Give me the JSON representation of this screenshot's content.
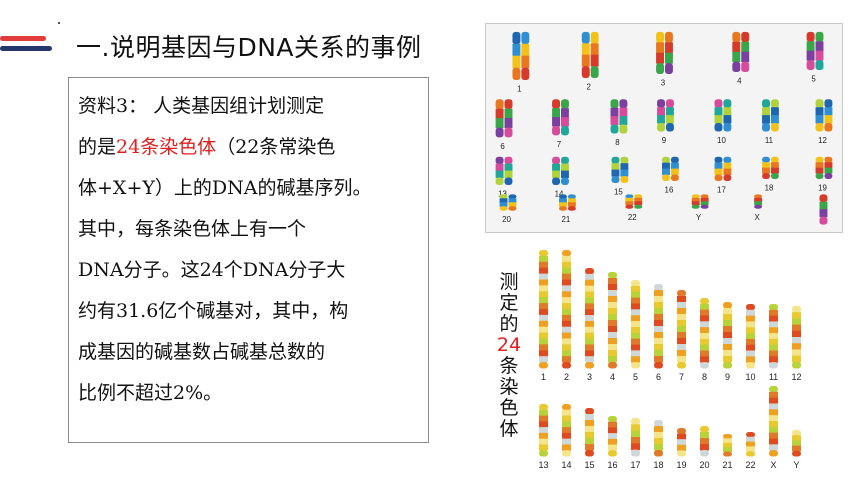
{
  "title": "一.说明基因与DNA关系的事例",
  "text_lines": [
    {
      "segments": [
        {
          "text": "资料3：  人类基因组计划测定",
          "red": false
        }
      ]
    },
    {
      "segments": [
        {
          "text": "的是",
          "red": false
        },
        {
          "text": "24条染色体",
          "red": true
        },
        {
          "text": "（22条常染色",
          "red": false
        }
      ]
    },
    {
      "segments": [
        {
          "text": "体+X+Y）上的DNA的碱基序列。",
          "red": false
        }
      ]
    },
    {
      "segments": [
        {
          "text": "其中，每条染色体上有一个",
          "red": false
        }
      ]
    },
    {
      "segments": [
        {
          "text": "DNA分子。这24个DNA分子大",
          "red": false
        }
      ]
    },
    {
      "segments": [
        {
          "text": "约有31.6亿个碱基对，其中，构",
          "red": false
        }
      ]
    },
    {
      "segments": [
        {
          "text": "成基因的碱基数占碱基总数的",
          "red": false
        }
      ]
    },
    {
      "segments": [
        {
          "text": "比例不超过2%。",
          "red": false
        }
      ]
    }
  ],
  "karyotype_labels": [
    "1",
    "2",
    "3",
    "4",
    "5",
    "6",
    "7",
    "8",
    "9",
    "10",
    "11",
    "12",
    "13",
    "14",
    "15",
    "16",
    "17",
    "18",
    "19",
    "20",
    "21",
    "22",
    "Y",
    "X"
  ],
  "idiogram_labels": [
    "1",
    "2",
    "3",
    "4",
    "5",
    "6",
    "7",
    "8",
    "9",
    "10",
    "11",
    "12",
    "13",
    "14",
    "15",
    "16",
    "17",
    "18",
    "19",
    "20",
    "21",
    "22",
    "X",
    "Y"
  ],
  "vertical_label": [
    {
      "text": "测",
      "red": false
    },
    {
      "text": "定",
      "red": false
    },
    {
      "text": "的",
      "red": false
    },
    {
      "text": "24",
      "red": true
    },
    {
      "text": "条",
      "red": false
    },
    {
      "text": "染",
      "red": false
    },
    {
      "text": "色",
      "red": false
    },
    {
      "text": "体",
      "red": false
    }
  ],
  "colors": {
    "accent_red": "#e02020",
    "deco_red": "#e23b3b",
    "deco_navy": "#26356c"
  }
}
